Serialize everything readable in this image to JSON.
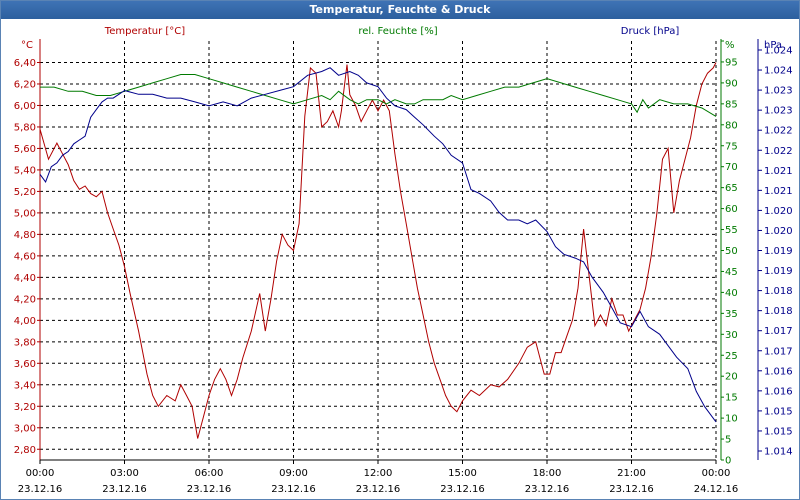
{
  "window_title": "Temperatur, Feuchte & Druck",
  "colors": {
    "temperature": "#b00000",
    "humidity": "#007a00",
    "pressure": "#00008b",
    "grid": "#000000"
  },
  "chart_data": {
    "type": "line",
    "title": "Temperatur, Feuchte & Druck",
    "x_ticks": [
      {
        "time": "00:00",
        "date": "23.12.16"
      },
      {
        "time": "03:00",
        "date": "23.12.16"
      },
      {
        "time": "06:00",
        "date": "23.12.16"
      },
      {
        "time": "09:00",
        "date": "23.12.16"
      },
      {
        "time": "12:00",
        "date": "23.12.16"
      },
      {
        "time": "15:00",
        "date": "23.12.16"
      },
      {
        "time": "18:00",
        "date": "23.12.16"
      },
      {
        "time": "21:00",
        "date": "23.12.16"
      },
      {
        "time": "00:00",
        "date": "24.12.16"
      }
    ],
    "axes": {
      "temperature": {
        "legend": "Temperatur [°C]",
        "unit": "°C",
        "ylim": [
          2.7,
          6.6
        ],
        "ticks": [
          "2,80",
          "3,00",
          "3,20",
          "3,40",
          "3,60",
          "3,80",
          "4,00",
          "4,20",
          "4,40",
          "4,60",
          "4,80",
          "5,00",
          "5,20",
          "5,40",
          "5,60",
          "5,80",
          "6,00",
          "6,20",
          "6,40"
        ]
      },
      "humidity": {
        "legend": "rel. Feuchte [%]",
        "unit": "%",
        "ylim": [
          0,
          100
        ],
        "ticks": [
          "0",
          "5",
          "10",
          "15",
          "20",
          "25",
          "30",
          "35",
          "40",
          "45",
          "50",
          "55",
          "60",
          "65",
          "70",
          "75",
          "80",
          "85",
          "90",
          "95",
          "%"
        ]
      },
      "pressure": {
        "legend": "Druck [hPa]",
        "unit": "hPa",
        "ylim": [
          1.0135,
          1.0245
        ],
        "ticks": [
          "1.014",
          "1.015",
          "1.015",
          "1.016",
          "1.016",
          "1.017",
          "1.017",
          "1.018",
          "1.018",
          "1.019",
          "1.019",
          "1.020",
          "1.020",
          "1.021",
          "1.021",
          "1.022",
          "1.022",
          "1.023",
          "1.023",
          "1.024",
          "1.024"
        ]
      }
    },
    "series": [
      {
        "name": "Temperatur [°C]",
        "x_hours": [
          0,
          0.3,
          0.6,
          0.8,
          1.0,
          1.2,
          1.4,
          1.6,
          1.8,
          2.0,
          2.2,
          2.4,
          2.6,
          2.8,
          3.0,
          3.2,
          3.5,
          3.8,
          4.0,
          4.2,
          4.5,
          4.8,
          5.0,
          5.2,
          5.4,
          5.6,
          5.8,
          6.0,
          6.2,
          6.4,
          6.6,
          6.8,
          7.0,
          7.2,
          7.5,
          7.8,
          8.0,
          8.2,
          8.4,
          8.6,
          8.8,
          9.0,
          9.2,
          9.4,
          9.6,
          9.8,
          10.0,
          10.2,
          10.4,
          10.6,
          10.7,
          10.9,
          11.0,
          11.2,
          11.4,
          11.6,
          11.8,
          12.0,
          12.2,
          12.4,
          12.6,
          12.8,
          13.0,
          13.2,
          13.4,
          13.6,
          13.8,
          14.0,
          14.2,
          14.4,
          14.6,
          14.8,
          15.0,
          15.3,
          15.6,
          16.0,
          16.3,
          16.6,
          17.0,
          17.3,
          17.6,
          17.9,
          18.1,
          18.3,
          18.5,
          18.7,
          18.9,
          19.1,
          19.3,
          19.5,
          19.7,
          19.9,
          20.1,
          20.3,
          20.5,
          20.7,
          20.9,
          21.0,
          21.1,
          21.3,
          21.5,
          21.7,
          21.9,
          22.1,
          22.3,
          22.5,
          22.7,
          22.9,
          23.1,
          23.3,
          23.5,
          23.7,
          23.9,
          24.0
        ],
        "values": [
          5.78,
          5.5,
          5.65,
          5.55,
          5.45,
          5.3,
          5.22,
          5.25,
          5.18,
          5.15,
          5.2,
          5.0,
          4.85,
          4.7,
          4.5,
          4.25,
          3.9,
          3.5,
          3.3,
          3.2,
          3.3,
          3.25,
          3.4,
          3.3,
          3.2,
          2.9,
          3.1,
          3.3,
          3.45,
          3.55,
          3.45,
          3.3,
          3.45,
          3.65,
          3.9,
          4.25,
          3.9,
          4.2,
          4.55,
          4.8,
          4.7,
          4.65,
          4.9,
          5.9,
          6.35,
          6.3,
          5.8,
          5.85,
          5.95,
          5.8,
          5.95,
          6.38,
          6.1,
          6.0,
          5.85,
          5.95,
          6.05,
          5.95,
          6.05,
          5.95,
          5.55,
          5.2,
          4.9,
          4.6,
          4.3,
          4.05,
          3.8,
          3.6,
          3.45,
          3.3,
          3.2,
          3.15,
          3.25,
          3.35,
          3.3,
          3.4,
          3.38,
          3.45,
          3.6,
          3.75,
          3.8,
          3.5,
          3.5,
          3.7,
          3.7,
          3.85,
          4.0,
          4.3,
          4.85,
          4.4,
          3.95,
          4.05,
          3.95,
          4.2,
          4.05,
          4.05,
          3.9,
          3.95,
          4.0,
          4.1,
          4.3,
          4.6,
          5.0,
          5.5,
          5.6,
          5.0,
          5.3,
          5.5,
          5.7,
          6.0,
          6.2,
          6.3,
          6.35,
          6.4
        ]
      },
      {
        "name": "rel. Feuchte [%]",
        "x_hours": [
          0,
          0.5,
          1.0,
          1.5,
          2.0,
          2.5,
          3.0,
          3.5,
          4.0,
          4.5,
          5.0,
          5.5,
          6.0,
          6.5,
          7.0,
          7.5,
          8.0,
          8.5,
          9.0,
          9.5,
          10.0,
          10.3,
          10.6,
          11.0,
          11.3,
          11.6,
          12.0,
          12.3,
          12.6,
          13.0,
          13.3,
          13.6,
          14.0,
          14.3,
          14.6,
          15.0,
          15.5,
          16.0,
          16.5,
          17.0,
          17.5,
          18.0,
          18.5,
          19.0,
          19.5,
          20.0,
          20.5,
          21.0,
          21.2,
          21.4,
          21.6,
          22.0,
          22.5,
          23.0,
          23.5,
          24.0
        ],
        "values": [
          89,
          89,
          88,
          88,
          87,
          87,
          88,
          89,
          90,
          91,
          92,
          92,
          91,
          90,
          89,
          88,
          87,
          86,
          85,
          86,
          87,
          86,
          88,
          86,
          85,
          86,
          86,
          85,
          86,
          85,
          85,
          86,
          86,
          86,
          87,
          86,
          87,
          88,
          89,
          89,
          90,
          91,
          90,
          89,
          88,
          87,
          86,
          85,
          83,
          86,
          84,
          86,
          85,
          85,
          84,
          82
        ]
      },
      {
        "name": "Druck [hPa]",
        "x_hours": [
          0,
          0.2,
          0.4,
          0.6,
          0.8,
          1.0,
          1.2,
          1.4,
          1.6,
          1.8,
          2.0,
          2.2,
          2.4,
          2.6,
          2.8,
          3.0,
          3.5,
          4.0,
          4.5,
          5.0,
          5.5,
          6.0,
          6.5,
          7.0,
          7.5,
          8.0,
          8.5,
          9.0,
          9.5,
          10.0,
          10.3,
          10.6,
          11.0,
          11.3,
          11.6,
          12.0,
          12.3,
          12.6,
          13.0,
          13.3,
          13.6,
          14.0,
          14.3,
          14.6,
          15.0,
          15.3,
          15.6,
          16.0,
          16.3,
          16.6,
          17.0,
          17.3,
          17.6,
          18.0,
          18.3,
          18.6,
          19.0,
          19.3,
          19.6,
          20.0,
          20.3,
          20.6,
          21.0,
          21.3,
          21.6,
          22.0,
          22.3,
          22.6,
          23.0,
          23.3,
          23.6,
          24.0
        ],
        "values": [
          1.021,
          1.0208,
          1.0212,
          1.0213,
          1.0215,
          1.0216,
          1.0218,
          1.0219,
          1.022,
          1.0225,
          1.0227,
          1.0229,
          1.023,
          1.023,
          1.0231,
          1.0232,
          1.0231,
          1.0231,
          1.023,
          1.023,
          1.0229,
          1.0228,
          1.0229,
          1.0228,
          1.023,
          1.0231,
          1.0232,
          1.0233,
          1.0236,
          1.0237,
          1.0238,
          1.0236,
          1.0237,
          1.0236,
          1.0234,
          1.0233,
          1.023,
          1.0228,
          1.0227,
          1.0225,
          1.0223,
          1.022,
          1.0218,
          1.0215,
          1.0213,
          1.0206,
          1.0205,
          1.0203,
          1.02,
          1.0198,
          1.0198,
          1.0197,
          1.0198,
          1.0195,
          1.0191,
          1.0189,
          1.0188,
          1.0187,
          1.0183,
          1.0179,
          1.0175,
          1.0171,
          1.017,
          1.0174,
          1.017,
          1.0168,
          1.0165,
          1.0162,
          1.0159,
          1.0153,
          1.0149,
          1.0145
        ]
      }
    ]
  }
}
